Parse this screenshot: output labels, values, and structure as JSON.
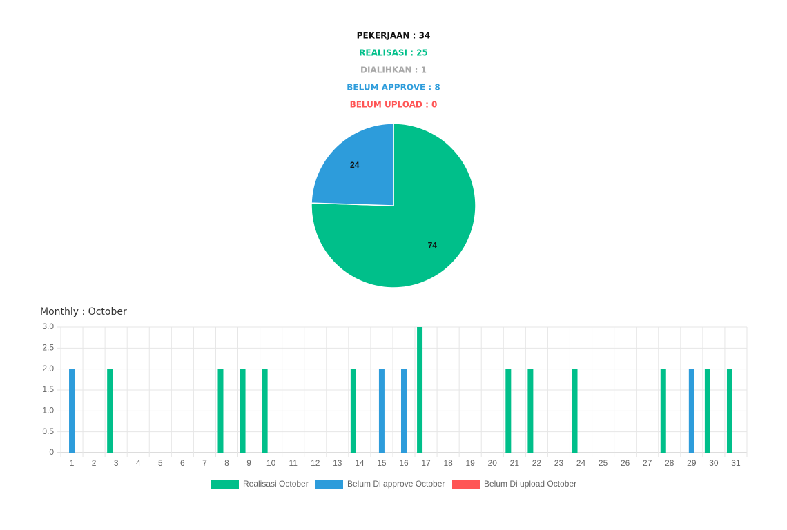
{
  "summary": [
    {
      "text": "PEKERJAAN : 34",
      "color": "#111111"
    },
    {
      "text": "REALISASI : 25",
      "color": "#00bf8a"
    },
    {
      "text": "DIALIHKAN : 1",
      "color": "#a8a8a8"
    },
    {
      "text": "BELUM APPROVE : 8",
      "color": "#2d9cdb"
    },
    {
      "text": "BELUM UPLOAD : 0",
      "color": "#ff5555"
    }
  ],
  "chart_data": [
    {
      "type": "pie",
      "values": [
        74,
        24
      ],
      "colors": [
        "#00bf8a",
        "#2d9cdb"
      ]
    },
    {
      "type": "bar",
      "title": "Monthly : October",
      "categories": [
        "1",
        "2",
        "3",
        "4",
        "5",
        "6",
        "7",
        "8",
        "9",
        "10",
        "11",
        "12",
        "13",
        "14",
        "15",
        "16",
        "17",
        "18",
        "19",
        "20",
        "21",
        "22",
        "23",
        "24",
        "25",
        "26",
        "27",
        "28",
        "29",
        "30",
        "31"
      ],
      "series": [
        {
          "name": "Realisasi October",
          "color": "#00bf8a",
          "values": [
            0,
            0,
            2,
            0,
            0,
            0,
            0,
            2,
            2,
            2,
            0,
            0,
            0,
            2,
            0,
            0,
            3,
            0,
            0,
            0,
            2,
            2,
            0,
            2,
            0,
            0,
            0,
            2,
            0,
            2,
            2
          ]
        },
        {
          "name": "Belum Di approve October",
          "color": "#2d9cdb",
          "values": [
            2,
            0,
            0,
            0,
            0,
            0,
            0,
            0,
            0,
            0,
            0,
            0,
            0,
            0,
            2,
            2,
            0,
            0,
            0,
            0,
            0,
            0,
            0,
            0,
            0,
            0,
            0,
            0,
            2,
            0,
            0
          ]
        },
        {
          "name": "Belum Di upload October",
          "color": "#ff5555",
          "values": [
            0,
            0,
            0,
            0,
            0,
            0,
            0,
            0,
            0,
            0,
            0,
            0,
            0,
            0,
            0,
            0,
            0,
            0,
            0,
            0,
            0,
            0,
            0,
            0,
            0,
            0,
            0,
            0,
            0,
            0,
            0
          ]
        }
      ],
      "ylim": [
        0,
        3
      ],
      "yticks": [
        0,
        0.5,
        {
          "value": 1,
          "label": "1.0"
        },
        1.5,
        {
          "value": 2,
          "label": "2.0"
        },
        2.5,
        {
          "value": 3,
          "label": "3.0"
        }
      ],
      "grid": true,
      "legend": "bottom"
    }
  ]
}
